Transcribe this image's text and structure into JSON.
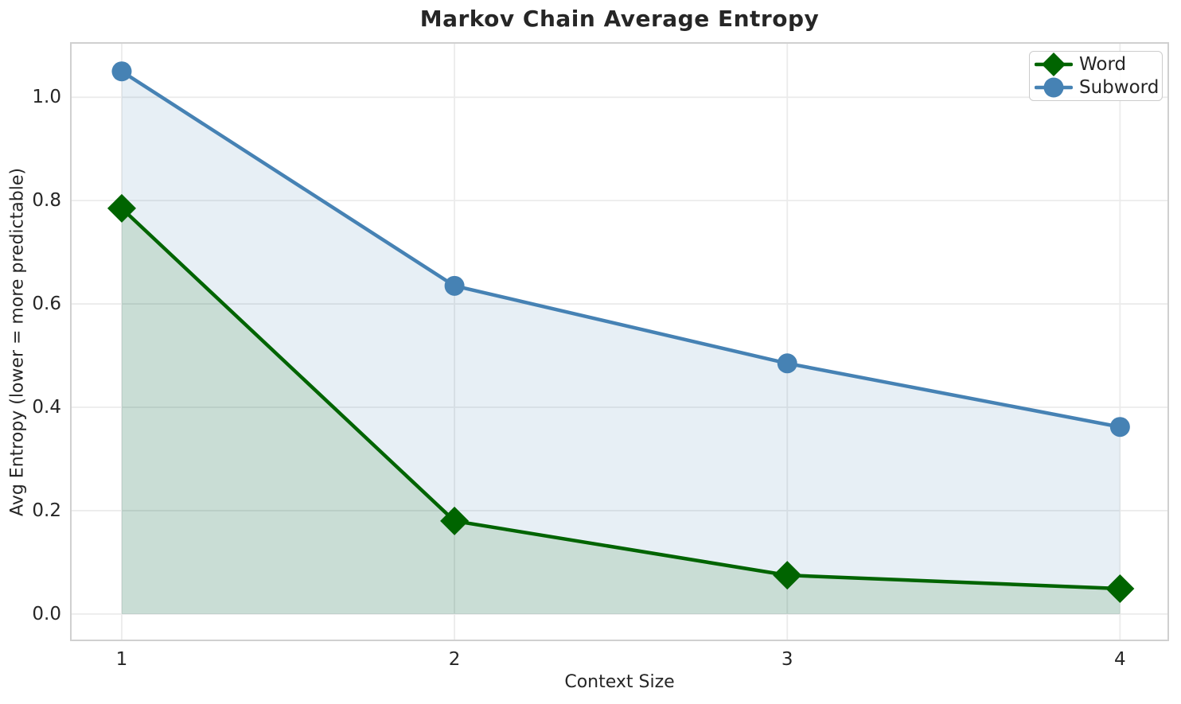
{
  "chart_data": {
    "type": "line",
    "title": "Markov Chain Average Entropy",
    "xlabel": "Context Size",
    "ylabel": "Avg Entropy (lower = more predictable)",
    "x": [
      1,
      2,
      3,
      4
    ],
    "series": [
      {
        "name": "Word",
        "color": "#006400",
        "marker": "diamond",
        "values": [
          0.785,
          0.18,
          0.075,
          0.049
        ]
      },
      {
        "name": "Subword",
        "color": "#4682b4",
        "marker": "circle",
        "values": [
          1.05,
          0.635,
          0.485,
          0.362
        ]
      }
    ],
    "area_baseline": 0,
    "area_fill_opacity": 0.13,
    "xticks": {
      "values": [
        1,
        2,
        3,
        4
      ],
      "labels": [
        "1",
        "2",
        "3",
        "4"
      ]
    },
    "yticks": {
      "values": [
        0,
        0.2,
        0.4,
        0.6,
        0.8,
        1.0
      ],
      "labels": [
        "0.0",
        "0.2",
        "0.4",
        "0.6",
        "0.8",
        "1.0"
      ]
    },
    "xlim": [
      0.847,
      4.145
    ],
    "ylim": [
      -0.051,
      1.105
    ],
    "grid": true,
    "legend_position": "upper right",
    "line_width": 4.5,
    "colors": {
      "grid": "#ebebeb",
      "spine": "#d0d0d0",
      "text": "#262626",
      "background": "#ffffff"
    }
  }
}
